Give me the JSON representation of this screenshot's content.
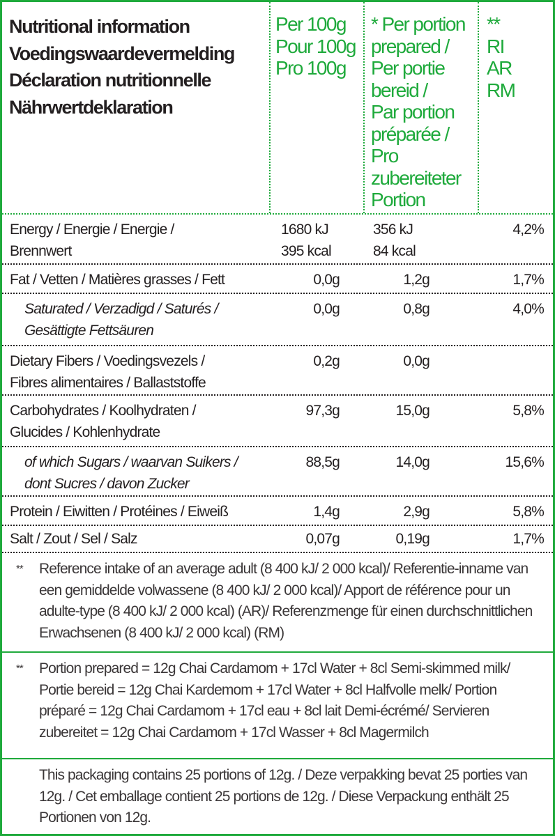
{
  "header": {
    "titles": [
      "Nutritional information",
      "Voedingswaardevermelding",
      "Déclaration nutritionnelle",
      "Nährwertdeklaration"
    ],
    "per100": [
      "Per 100g",
      "Pour 100g",
      "Pro 100g"
    ],
    "per_portion": [
      "* Per portion",
      "prepared /",
      "Per portie",
      "bereid /",
      "Par portion",
      "préparée /",
      "Pro",
      "zubereiteter",
      "Portion"
    ],
    "ri": [
      "**",
      "RI",
      "AR",
      "RM"
    ]
  },
  "accent_color": "#1faa3c",
  "rows": [
    {
      "label": [
        "Energy / Energie / Energie /",
        "Brennwert"
      ],
      "per100": [
        "1680 kJ",
        "395 kcal"
      ],
      "portion": [
        "356 kJ",
        "84 kcal"
      ],
      "ri": "4,2%"
    },
    {
      "label": [
        "Fat / Vetten / Matières grasses / Fett"
      ],
      "per100": "0,0g",
      "portion": "1,2g",
      "ri": "1,7%"
    },
    {
      "label": [
        "Saturated / Verzadigd / Saturés /",
        "Gesättigte Fettsäuren"
      ],
      "per100": "0,0g",
      "portion": "0,8g",
      "ri": "4,0%"
    },
    {
      "label": [
        "Dietary Fibers / Voedingsvezels /",
        "Fibres alimentaires / Ballaststoffe"
      ],
      "per100": "0,2g",
      "portion": "0,0g",
      "ri": ""
    },
    {
      "label": [
        "Carbohydrates / Koolhydraten /",
        "Glucides / Kohlenhydrate"
      ],
      "per100": "97,3g",
      "portion": "15,0g",
      "ri": "5,8%"
    },
    {
      "label": [
        "of which Sugars / waarvan Suikers /",
        "dont Sucres / davon Zucker"
      ],
      "per100": "88,5g",
      "portion": "14,0g",
      "ri": "15,6%"
    },
    {
      "label": [
        "Protein / Eiwitten / Protéines / Eiweiß"
      ],
      "per100": "1,4g",
      "portion": "2,9g",
      "ri": "5,8%"
    },
    {
      "label": [
        "Salt / Zout / Sel / Salz"
      ],
      "per100": "0,07g",
      "portion": "0,19g",
      "ri": "1,7%"
    }
  ],
  "footnotes": [
    {
      "mark": "**",
      "text": "Reference intake of an average adult (8 400 kJ/ 2 000 kcal)/ Referentie-inname van een gemiddelde volwassene (8 400 kJ/ 2 000 kcal)/ Apport de référence pour un adulte-type (8 400 kJ/ 2 000 kcal) (AR)/ Referenzmenge für einen durchschnittlichen Erwachsenen (8 400 kJ/ 2 000 kcal) (RM)"
    },
    {
      "mark": "**",
      "text": "Portion prepared = 12g Chai Cardamom + 17cl Water + 8cl Semi-skimmed milk/ Portie bereid = 12g Chai Kardemom + 17cl Water + 8cl Halfvolle melk/ Portion préparé = 12g Chai Cardamom + 17cl eau + 8cl lait Demi-écrémé/ Servieren zubereitet = 12g Chai Cardamom + 17cl Wasser + 8cl Magermilch"
    },
    {
      "mark": "",
      "text": "This packaging contains 25 portions of 12g. / Deze verpakking bevat 25 porties van 12g. / Cet emballage contient 25 portions de 12g. / Diese Verpackung enthält 25 Portionen von 12g."
    }
  ]
}
